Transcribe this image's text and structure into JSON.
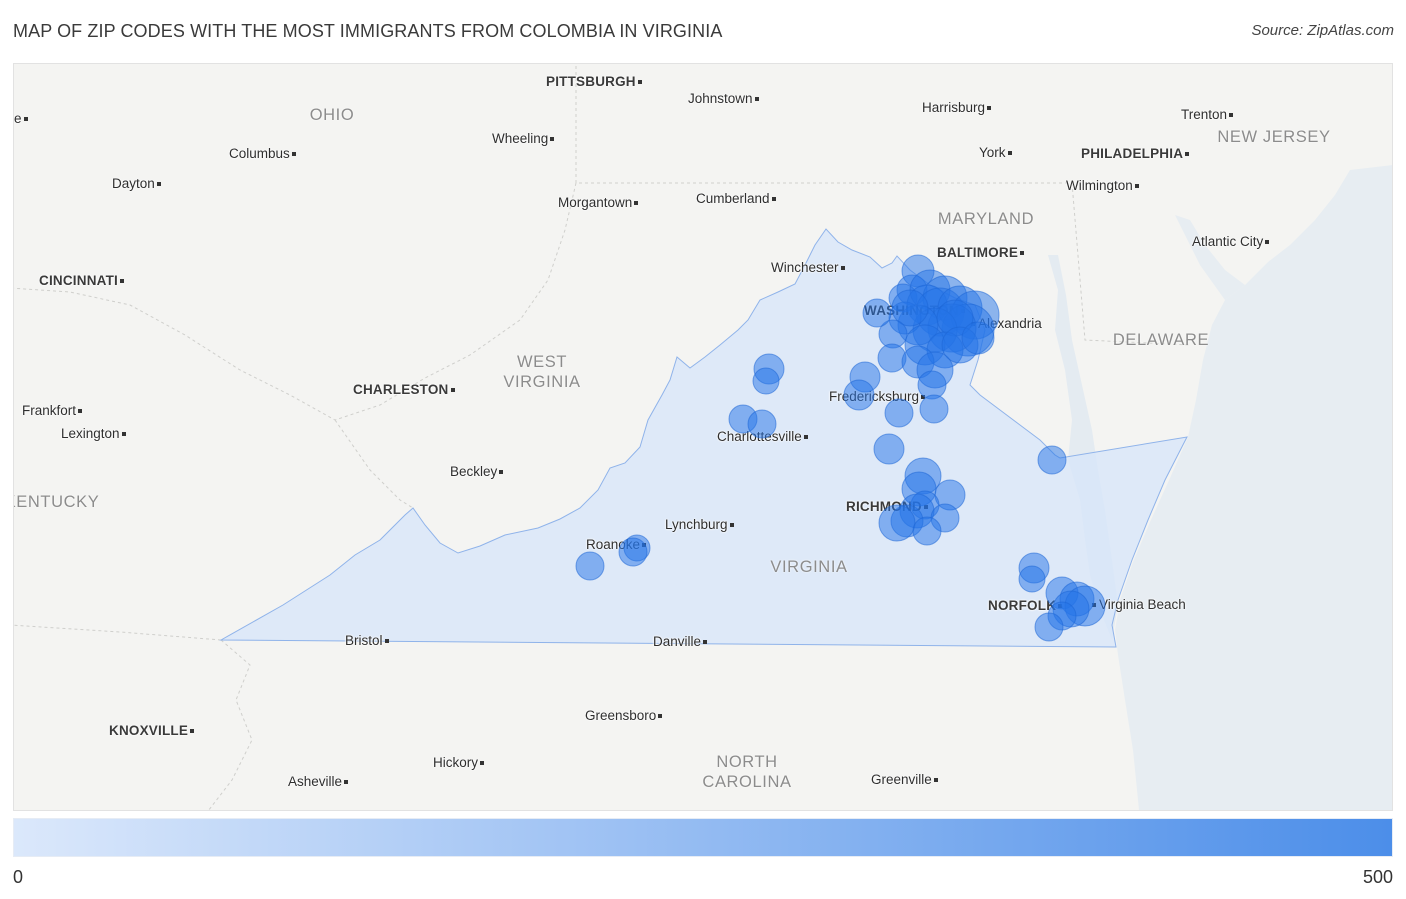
{
  "title": "MAP OF ZIP CODES WITH THE MOST IMMIGRANTS FROM COLOMBIA IN VIRGINIA",
  "source": "Source: ZipAtlas.com",
  "map": {
    "states": [
      "OHIO",
      "NEW JERSEY",
      "MARYLAND",
      "WEST VIRGINIA",
      "DELAWARE",
      "KENTUCKY",
      "VIRGINIA",
      "NORTH CAROLINA"
    ],
    "major_cities": [
      "PITTSBURGH",
      "PHILADELPHIA",
      "BALTIMORE",
      "CINCINNATI",
      "WASHINGTON",
      "CHARLESTON",
      "RICHMOND",
      "NORFOLK",
      "KNOXVILLE"
    ],
    "cities": [
      "e",
      "Johnstown",
      "Harrisburg",
      "Trenton",
      "Wheeling",
      "Columbus",
      "York",
      "Dayton",
      "Wilmington",
      "Morgantown",
      "Cumberland",
      "Atlantic City",
      "Winchester",
      "Alexandria",
      "Fredericksburg",
      "Frankfort",
      "Lexington",
      "Charlottesville",
      "Beckley",
      "Lynchburg",
      "Roanoke",
      "Virginia Beach",
      "Bristol",
      "Danville",
      "Greensboro",
      "Hickory",
      "Asheville",
      "Greenville"
    ]
  },
  "legend": {
    "min_label": "0",
    "max_label": "500"
  },
  "colors": {
    "marker": "#2474e8",
    "region_fill": "#d7e5fa",
    "region_stroke": "#8fb3ea",
    "legend_low": "#dbe8fb",
    "legend_high": "#4c8ee9",
    "map_background": "#f4f4f2",
    "water": "#e7edf2"
  }
}
